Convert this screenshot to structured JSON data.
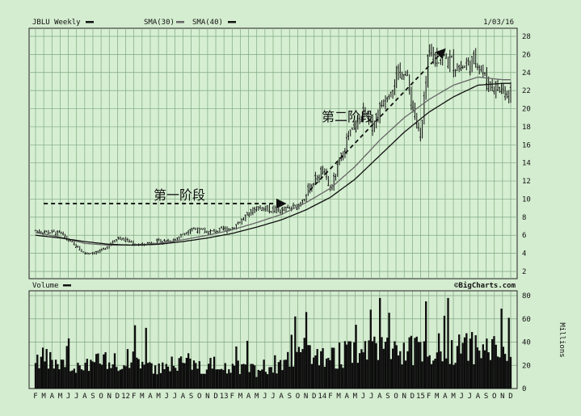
{
  "colors": {
    "page_bg": "#d4ecd0",
    "panel_bg": "#d6efd2",
    "grid": "#7fa77f",
    "price": "#111111",
    "volume": "#0d0d0d",
    "sma30": "#666666",
    "sma40": "#111111",
    "border": "#222222"
  },
  "chart_data": [
    {
      "type": "line",
      "title": "JBLU Weekly",
      "legend": [
        "SMA(30)",
        "SMA(40)"
      ],
      "date": "1/03/16",
      "x_tick_labels": [
        "F",
        "M",
        "A",
        "M",
        "J",
        "J",
        "A",
        "S",
        "O",
        "N",
        "D",
        "12",
        "F",
        "M",
        "A",
        "M",
        "J",
        "J",
        "A",
        "S",
        "O",
        "N",
        "D",
        "13",
        "F",
        "M",
        "A",
        "M",
        "J",
        "J",
        "A",
        "S",
        "O",
        "N",
        "D",
        "14",
        "F",
        "M",
        "A",
        "M",
        "J",
        "J",
        "A",
        "S",
        "O",
        "N",
        "D",
        "15",
        "F",
        "M",
        "A",
        "M",
        "J",
        "J",
        "A",
        "S",
        "O",
        "N",
        "D"
      ],
      "ylim": [
        2,
        28
      ],
      "y_ticks": [
        2,
        4,
        6,
        8,
        10,
        12,
        14,
        16,
        18,
        20,
        22,
        24,
        26,
        28
      ],
      "price_anchors": {
        "x": [
          0,
          3,
          6,
          8,
          10,
          12,
          13,
          14,
          17,
          19,
          21,
          24,
          27,
          30,
          32,
          34,
          35,
          36,
          38,
          40,
          41,
          43,
          45,
          47,
          48,
          50,
          52,
          54,
          55,
          57
        ],
        "y": [
          6.5,
          6.2,
          4.0,
          4.2,
          5.8,
          5.1,
          4.9,
          5.2,
          5.5,
          6.8,
          6.3,
          6.8,
          9.1,
          8.7,
          9.2,
          12.0,
          13.2,
          11.0,
          16.5,
          19.5,
          18.0,
          22.0,
          24.5,
          16.5,
          26.0,
          25.5,
          24.5,
          25.5,
          23.0,
          22.0
        ]
      },
      "sma30_anchors": {
        "x": [
          0,
          3,
          6,
          9,
          12,
          15,
          18,
          21,
          24,
          27,
          30,
          33,
          36,
          39,
          42,
          45,
          48,
          51,
          54,
          57
        ],
        "y": [
          6.3,
          5.8,
          5.1,
          4.9,
          4.9,
          5.1,
          5.5,
          6.0,
          6.6,
          7.4,
          8.3,
          9.6,
          11.2,
          13.6,
          16.5,
          19.0,
          21.0,
          22.6,
          23.5,
          23.2
        ]
      },
      "sma40_anchors": {
        "x": [
          0,
          3,
          6,
          9,
          12,
          15,
          18,
          21,
          24,
          27,
          30,
          33,
          36,
          39,
          42,
          45,
          48,
          51,
          54,
          57
        ],
        "y": [
          6.0,
          5.7,
          5.3,
          5.0,
          4.9,
          5.0,
          5.3,
          5.7,
          6.2,
          6.9,
          7.7,
          8.8,
          10.2,
          12.2,
          14.8,
          17.4,
          19.6,
          21.3,
          22.6,
          22.8
        ]
      },
      "annotations": [
        {
          "label": "第一阶段",
          "arrow_start": [
            1,
            9.5
          ],
          "arrow_end": [
            30.5,
            9.5
          ]
        },
        {
          "label": "第二阶段",
          "arrow_start": [
            33.5,
            11
          ],
          "arrow_end": [
            50,
            26.6
          ]
        }
      ]
    },
    {
      "type": "bar",
      "title": "Volume",
      "ylabel": "Millions",
      "source": "©BigCharts.com",
      "ylim": [
        0,
        80
      ],
      "y_ticks": [
        0,
        20,
        40,
        60,
        80
      ],
      "volume_anchors": {
        "x": [
          0,
          3,
          6,
          9,
          12,
          15,
          18,
          21,
          24,
          27,
          30,
          33,
          36,
          39,
          42,
          45,
          48,
          51,
          54,
          57
        ],
        "y": [
          30,
          22,
          25,
          24,
          28,
          22,
          25,
          22,
          20,
          18,
          24,
          35,
          30,
          33,
          38,
          35,
          37,
          37,
          38,
          36
        ]
      }
    }
  ]
}
